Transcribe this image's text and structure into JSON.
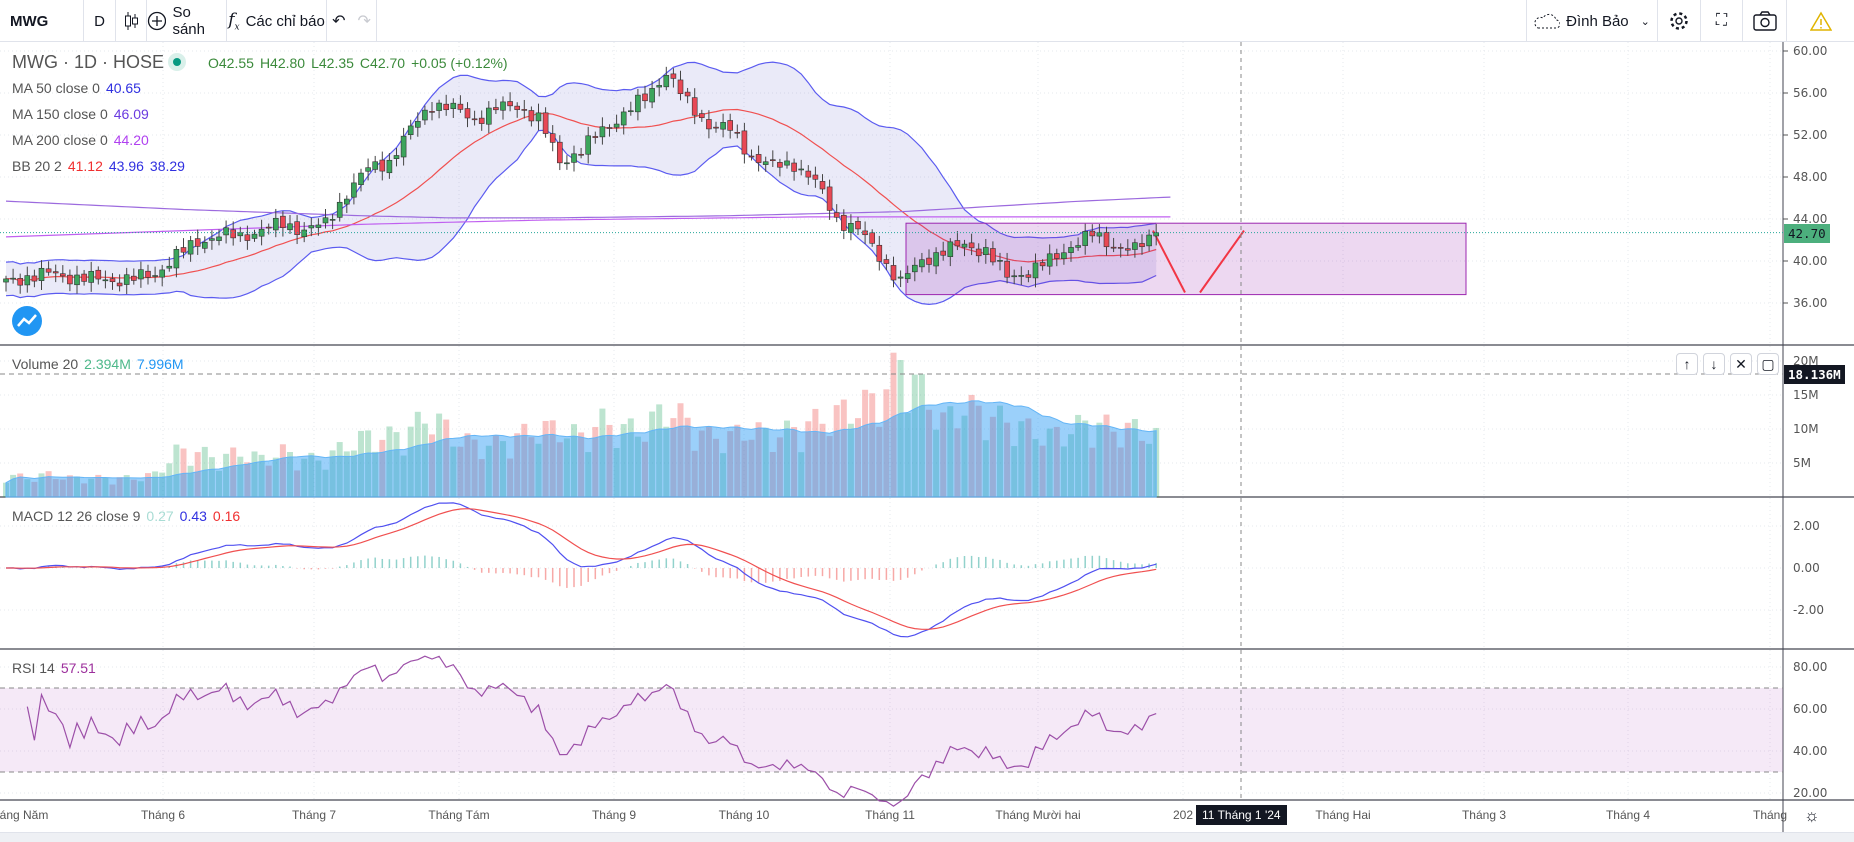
{
  "toolbar": {
    "symbol": "MWG",
    "interval": "D",
    "compare": "So sánh",
    "indicators": "Các chỉ báo",
    "layout_name": "Đình Bảo"
  },
  "legend": {
    "title": "MWG · 1D · HOSE",
    "ohlc": {
      "o": "O42.55",
      "h": "H42.80",
      "l": "L42.35",
      "c": "C42.70",
      "chg": "+0.05 (+0.12%)"
    },
    "ma50": {
      "label": "MA 50 close 0",
      "value": "40.65"
    },
    "ma150": {
      "label": "MA 150 close 0",
      "value": "46.09"
    },
    "ma200": {
      "label": "MA 200 close 0",
      "value": "44.20"
    },
    "bb": {
      "label": "BB 20 2",
      "basis": "41.12",
      "upper": "43.96",
      "lower": "38.29"
    },
    "volume": {
      "label": "Volume 20",
      "value": "2.394M",
      "ma": "7.996M"
    },
    "macd": {
      "label": "MACD 12 26 close 9",
      "hist": "0.27",
      "macd": "0.43",
      "signal": "0.16"
    },
    "rsi": {
      "label": "RSI 14",
      "value": "57.51"
    }
  },
  "axes": {
    "price_ticks": [
      "60.00",
      "56.00",
      "52.00",
      "48.00",
      "44.00",
      "40.00",
      "36.00"
    ],
    "last_price": "42.70",
    "volume_ticks": [
      "20M",
      "15M",
      "10M",
      "5M"
    ],
    "volume_crosshair": "18.136M",
    "macd_ticks": [
      "2.00",
      "0.00",
      "-2.00"
    ],
    "rsi_ticks": [
      "80.00",
      "60.00",
      "40.00",
      "20.00"
    ],
    "time_labels": [
      "Tháng Năm",
      "Tháng 6",
      "Tháng 7",
      "Tháng Tám",
      "Tháng 9",
      "Tháng 10",
      "Tháng 11",
      "Tháng Mười hai",
      "202",
      "Tháng Hai",
      "Tháng 3",
      "Tháng 4",
      "Tháng"
    ],
    "crosshair_date": "11 Tháng 1 '24"
  },
  "colors": {
    "up": "#26a69a",
    "down": "#ef5350",
    "bb": "#5b5bf0",
    "basis": "#f05050",
    "ma150": "#9c6ade",
    "ma200": "#c060f0",
    "vol_ma": "#64b5f6",
    "rsi": "#9c4fa8",
    "accent": "#2962ff"
  },
  "chart_data": {
    "type": "candlestick",
    "symbol": "MWG",
    "timeframe": "1D",
    "exchange": "HOSE",
    "bars_per_anchor": 3,
    "close": [
      38.0,
      38.5,
      38.8,
      38.5,
      38.3,
      38.2,
      38.3,
      38.8,
      40.5,
      41.8,
      42.5,
      42.3,
      43.0,
      43.5,
      43.0,
      43.5,
      46.5,
      48.8,
      49.5,
      52.5,
      55.0,
      54.5,
      53.5,
      54.5,
      54.8,
      53.5,
      49.5,
      50.5,
      52.5,
      54.0,
      55.5,
      58.0,
      55.0,
      53.0,
      52.5,
      50.0,
      49.0,
      49.3,
      47.5,
      44.0,
      43.0,
      40.5,
      38.0,
      40.0,
      41.0,
      41.5,
      41.0,
      38.5,
      39.0,
      40.0,
      41.5,
      42.5,
      41.5,
      41.0,
      42.7
    ],
    "volume_m": [
      3,
      2.5,
      3,
      2.5,
      2.5,
      2.5,
      2.5,
      3,
      6,
      6,
      5,
      6,
      5,
      6,
      5,
      5,
      7,
      8,
      8,
      9,
      11,
      8,
      7,
      7,
      8,
      9,
      9,
      8,
      10,
      9,
      9,
      12,
      10,
      8,
      8,
      9,
      8,
      9,
      10,
      11,
      12,
      13,
      18,
      14,
      10,
      12,
      11,
      10,
      9,
      8,
      9,
      10,
      9,
      9,
      8
    ],
    "ma150": [
      45.7,
      45.3,
      44.9,
      44.6,
      44.3,
      44.1,
      44.1,
      44.2,
      44.3,
      44.5,
      44.7,
      45.2,
      45.7,
      46.09
    ],
    "ma200": [
      42.3,
      42.6,
      42.9,
      43.2,
      43.5,
      43.7,
      43.9,
      44.0,
      44.1,
      44.2,
      44.2,
      44.2,
      44.2,
      44.2
    ],
    "ma50": [
      38.9,
      38.5,
      40.0,
      41.5,
      43.0,
      47.0,
      51.0,
      52.5,
      53.5,
      51.0,
      46.5,
      42.0,
      40.2,
      40.65
    ],
    "drawing_rectangle": {
      "price_top": 43.6,
      "price_bottom": 36.8
    },
    "drawing_path_prices": [
      42.9,
      37.0,
      37.0,
      42.9
    ],
    "price_range": [
      32,
      62
    ],
    "rsi_bands": [
      70,
      30
    ]
  }
}
